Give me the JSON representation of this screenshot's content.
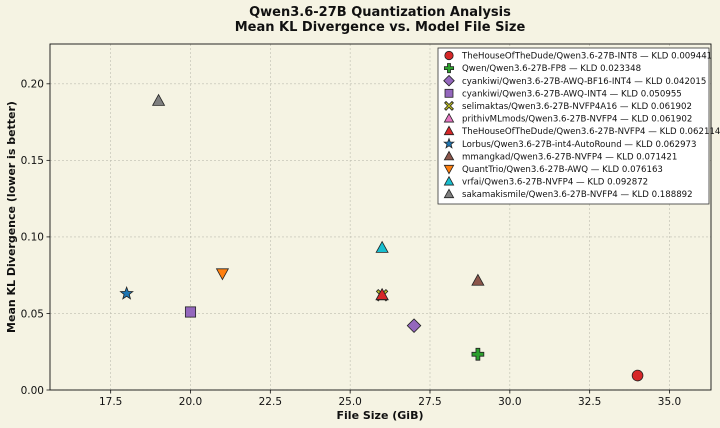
{
  "chart_data": {
    "type": "scatter",
    "title": "Qwen3.6-27B Quantization Analysis",
    "subtitle": "Mean KL Divergence vs. Model File Size",
    "xlabel": "File Size (GiB)",
    "ylabel": "Mean KL Divergence (lower is better)",
    "xlim": [
      15.6,
      36.3
    ],
    "ylim": [
      0,
      0.226
    ],
    "xticks": [
      17.5,
      20.0,
      22.5,
      25.0,
      27.5,
      30.0,
      32.5,
      35.0
    ],
    "xtick_labels": [
      "17.5",
      "20.0",
      "22.5",
      "25.0",
      "27.5",
      "30.0",
      "32.5",
      "35.0"
    ],
    "yticks": [
      0.0,
      0.05,
      0.1,
      0.15,
      0.2
    ],
    "ytick_labels": [
      "0.00",
      "0.05",
      "0.10",
      "0.15",
      "0.20"
    ],
    "grid": true,
    "legend_position": "top-right",
    "series": [
      {
        "name": "TheHouseOfTheDude/Qwen3.6-27B-INT8 — KLD 0.009441",
        "x": 34.0,
        "y": 0.009441,
        "marker": "circle",
        "color": "#d62728"
      },
      {
        "name": "Qwen/Qwen3.6-27B-FP8 — KLD 0.023348",
        "x": 29.0,
        "y": 0.023348,
        "marker": "plus",
        "color": "#2ca02c"
      },
      {
        "name": "cyankiwi/Qwen3.6-27B-AWQ-BF16-INT4 — KLD 0.042015",
        "x": 27.0,
        "y": 0.042015,
        "marker": "diamond",
        "color": "#9467bd"
      },
      {
        "name": "cyankiwi/Qwen3.6-27B-AWQ-INT4 — KLD 0.050955",
        "x": 20.0,
        "y": 0.050955,
        "marker": "square",
        "color": "#9467bd"
      },
      {
        "name": "selimaktas/Qwen3.6-27B-NVFP4A16 — KLD 0.061902",
        "x": 26.0,
        "y": 0.061902,
        "marker": "x",
        "color": "#bcbd22"
      },
      {
        "name": "prithivMLmods/Qwen3.6-27B-NVFP4 — KLD 0.061902",
        "x": 26.0,
        "y": 0.061902,
        "marker": "triangle",
        "color": "#e377c2"
      },
      {
        "name": "TheHouseOfTheDude/Qwen3.6-27B-NVFP4 — KLD 0.062114",
        "x": 26.0,
        "y": 0.062114,
        "marker": "triangle",
        "color": "#d62728"
      },
      {
        "name": "Lorbus/Qwen3.6-27B-int4-AutoRound — KLD 0.062973",
        "x": 18.0,
        "y": 0.062973,
        "marker": "star",
        "color": "#1f77b4"
      },
      {
        "name": "mmangkad/Qwen3.6-27B-NVFP4 — KLD 0.071421",
        "x": 29.0,
        "y": 0.071421,
        "marker": "triangle",
        "color": "#8c564b"
      },
      {
        "name": "QuantTrio/Qwen3.6-27B-AWQ — KLD 0.076163",
        "x": 21.0,
        "y": 0.076163,
        "marker": "triangle-down",
        "color": "#ff7f0e"
      },
      {
        "name": "vrfai/Qwen3.6-27B-NVFP4 — KLD 0.092872",
        "x": 26.0,
        "y": 0.092872,
        "marker": "triangle",
        "color": "#17becf"
      },
      {
        "name": "sakamakismile/Qwen3.6-27B-NVFP4 — KLD 0.188892",
        "x": 19.0,
        "y": 0.188892,
        "marker": "triangle",
        "color": "#7f7f7f"
      }
    ]
  }
}
